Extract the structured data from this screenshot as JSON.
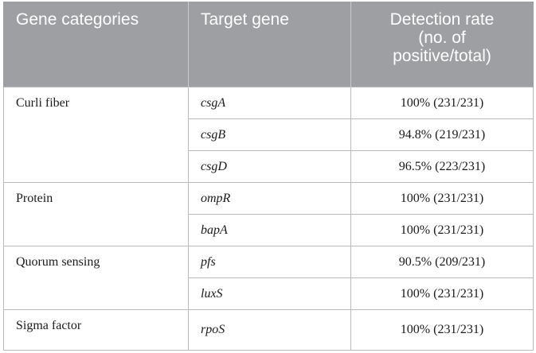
{
  "table": {
    "headers": {
      "category": "Gene categories",
      "gene": "Target gene",
      "rate_line1": "Detection rate",
      "rate_line2": "(no. of",
      "rate_line3": "positive/total)"
    },
    "groups": [
      {
        "category": "Curli fiber",
        "rows": [
          {
            "gene": "csgA",
            "rate": "100% (231/231)"
          },
          {
            "gene": "csgB",
            "rate": "94.8% (219/231)"
          },
          {
            "gene": "csgD",
            "rate": "96.5% (223/231)"
          }
        ]
      },
      {
        "category": "Protein",
        "rows": [
          {
            "gene": "ompR",
            "rate": "100% (231/231)"
          },
          {
            "gene": "bapA",
            "rate": "100% (231/231)"
          }
        ]
      },
      {
        "category": "Quorum sensing",
        "rows": [
          {
            "gene": "pfs",
            "rate": "90.5% (209/231)"
          },
          {
            "gene": "luxS",
            "rate": "100% (231/231)"
          }
        ]
      },
      {
        "category": "Sigma factor",
        "rows": [
          {
            "gene": "rpoS",
            "rate": "100% (231/231)"
          }
        ]
      }
    ]
  }
}
